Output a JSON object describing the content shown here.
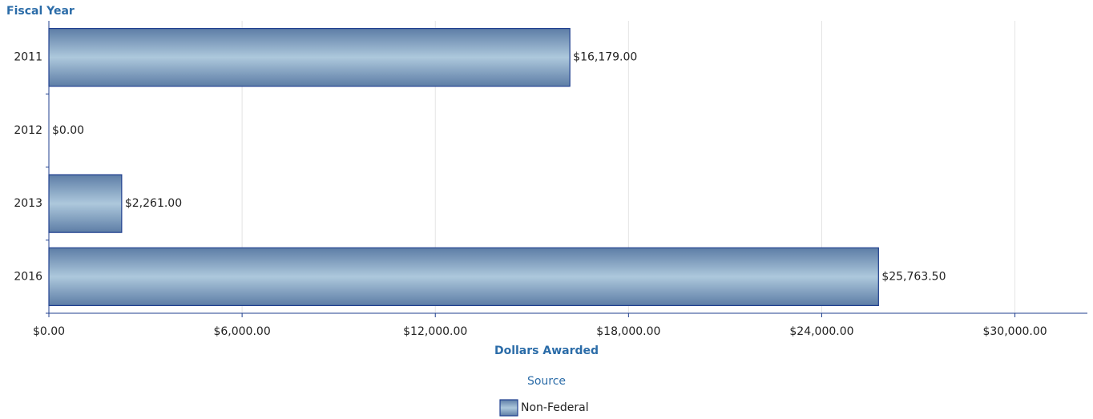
{
  "chart_data": {
    "type": "hbar",
    "y_axis_title": "Fiscal Year",
    "x_axis_title": "Dollars Awarded",
    "legend_title": "Source",
    "categories": [
      "2011",
      "2012",
      "2013",
      "2016"
    ],
    "series": [
      {
        "name": "Non-Federal",
        "color": "#7b97b9",
        "border": "#1f3f8f",
        "values": [
          16179,
          0,
          2261,
          25763.5
        ],
        "value_labels": [
          "$16,179.00",
          "$0.00",
          "$2,261.00",
          "$25,763.50"
        ]
      }
    ],
    "xlim": [
      0,
      32250
    ],
    "xticks": [
      {
        "value": 0,
        "label": "$0.00"
      },
      {
        "value": 6000,
        "label": "$6,000.00"
      },
      {
        "value": 12000,
        "label": "$12,000.00"
      },
      {
        "value": 18000,
        "label": "$18,000.00"
      },
      {
        "value": 24000,
        "label": "$24,000.00"
      },
      {
        "value": 30000,
        "label": "$30,000.00"
      }
    ],
    "grid": true
  }
}
